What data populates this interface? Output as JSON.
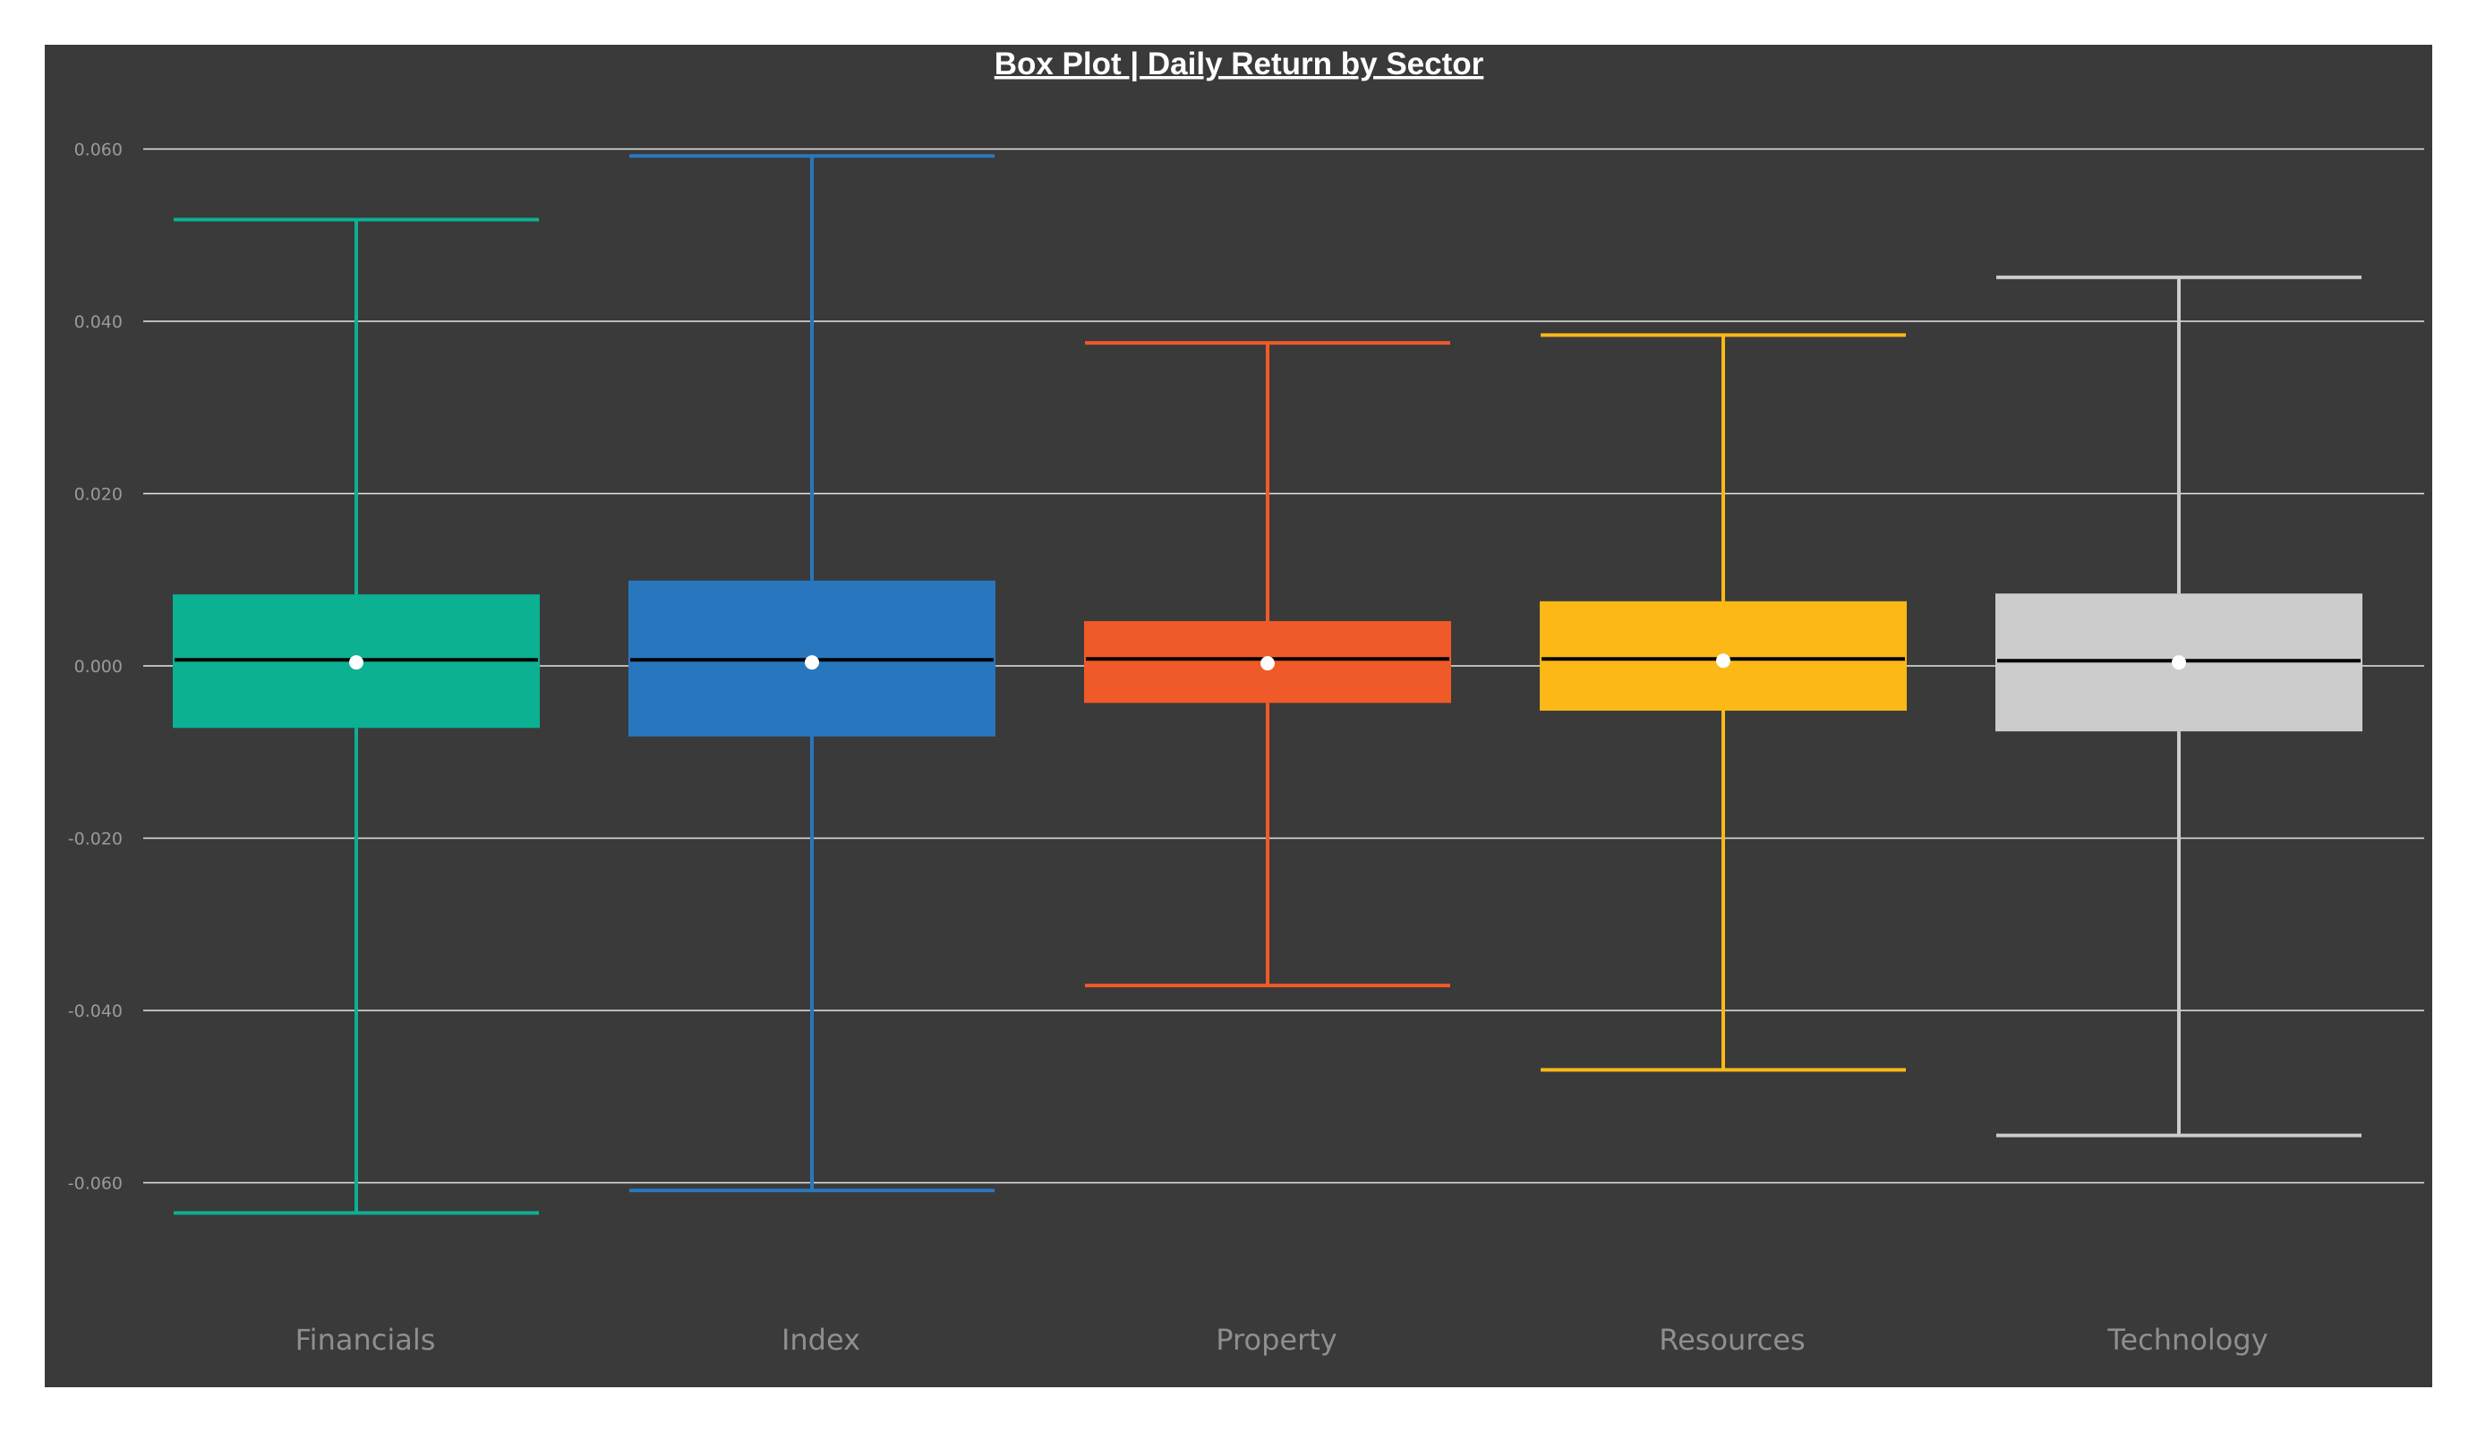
{
  "chart_data": {
    "type": "box",
    "title": "Box Plot | Daily Return by Sector",
    "xlabel": "",
    "ylabel": "",
    "ylim": [
      -0.078,
      0.066
    ],
    "yticks": [
      0.06,
      0.04,
      0.02,
      0.0,
      -0.02,
      -0.04,
      -0.06
    ],
    "ytick_labels": [
      "0.060",
      "0.040",
      "0.020",
      "0.000",
      "-0.020",
      "-0.040",
      "-0.060"
    ],
    "grid": true,
    "categories": [
      "Financials",
      "Index",
      "Property",
      "Resources",
      "Technology"
    ],
    "series": [
      {
        "category": "Financials",
        "color": "#0cb093",
        "min": -0.0635,
        "q1": -0.0072,
        "median": 0.0007,
        "mean": 0.0004,
        "q3": 0.0083,
        "max": 0.0518
      },
      {
        "category": "Index",
        "color": "#2877be",
        "min": -0.0609,
        "q1": -0.0082,
        "median": 0.0007,
        "mean": 0.0004,
        "q3": 0.0099,
        "max": 0.0592
      },
      {
        "category": "Property",
        "color": "#f05a28",
        "min": -0.0371,
        "q1": -0.0043,
        "median": 0.0008,
        "mean": 0.0003,
        "q3": 0.0052,
        "max": 0.0375
      },
      {
        "category": "Resources",
        "color": "#fbb816",
        "min": -0.0469,
        "q1": -0.0052,
        "median": 0.0008,
        "mean": 0.0006,
        "q3": 0.0075,
        "max": 0.0384
      },
      {
        "category": "Technology",
        "color": "#cccccc",
        "min": -0.0545,
        "q1": -0.0076,
        "median": 0.0006,
        "mean": 0.0004,
        "q3": 0.0084,
        "max": 0.0451
      }
    ]
  },
  "colors": {
    "plot_background": "#3a3a3a",
    "page_background": "#ffffff",
    "gridline": "#e6e6e6",
    "median_line": "#000000",
    "mean_marker": "#ffffff"
  }
}
